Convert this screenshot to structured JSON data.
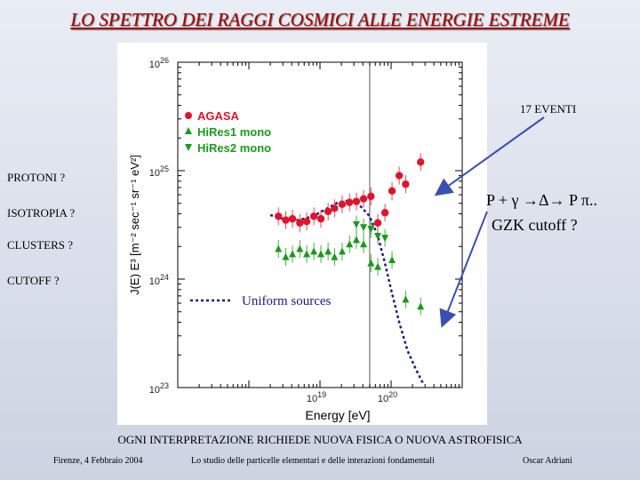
{
  "slide": {
    "title": "LO SPETTRO DEI RAGGI COSMICI ALLE ENERGIE ESTREME",
    "side_labels": [
      "PROTONI ?",
      "ISOTROPIA ?",
      "CLUSTERS ?",
      "CUTOFF ?"
    ],
    "eventi_label": "17 EVENTI",
    "gzk_line1": "P + γ →Δ→ P π..",
    "gzk_line2": "GZK cutoff ?",
    "bottom_note": "OGNI INTERPRETAZIONE  RICHIEDE NUOVA FISICA O NUOVA ASTROFISICA",
    "footer": {
      "left": "Firenze, 4 Febbraio 2004",
      "center": "Lo studio delle particelle elementari e delle interazioni fondamentali",
      "right": "Oscar Adriani"
    },
    "colors": {
      "title": "#a40000",
      "agasa": "#e0142a",
      "hires": "#1a9a1a",
      "uniform": "#1a1a8c"
    }
  },
  "chart_data": {
    "type": "scatter",
    "xlabel": "Energy [eV]",
    "ylabel": "J(E) E³ [m⁻² sec⁻¹ sr⁻¹ eV²]",
    "xlim": [
      1e+17,
      1e+21
    ],
    "ylim": [
      1e+23,
      1e+26
    ],
    "xscale": "log",
    "yscale": "log",
    "x_ticks": [
      {
        "value": 1e+19,
        "label_base": "10",
        "label_exp": "19"
      },
      {
        "value": 1e+20,
        "label_base": "10",
        "label_exp": "20"
      }
    ],
    "y_ticks": [
      {
        "value": 1e+23,
        "label_base": "10",
        "label_exp": "23"
      },
      {
        "value": 1e+24,
        "label_base": "10",
        "label_exp": "24"
      },
      {
        "value": 1e+25,
        "label_base": "10",
        "label_exp": "25"
      },
      {
        "value": 1e+26,
        "label_base": "10",
        "label_exp": "26"
      }
    ],
    "legend_position": "top-left",
    "series": [
      {
        "name": "AGASA",
        "marker": "circle",
        "color": "#e0142a",
        "points": [
          {
            "x": 2.6e+18,
            "y": 3.8e+24
          },
          {
            "x": 3.3e+18,
            "y": 3.5e+24
          },
          {
            "x": 4.1e+18,
            "y": 3.6e+24
          },
          {
            "x": 5.2e+18,
            "y": 3.3e+24
          },
          {
            "x": 6.5e+18,
            "y": 3.4e+24
          },
          {
            "x": 8.2e+18,
            "y": 3.8e+24
          },
          {
            "x": 1.03e+19,
            "y": 3.6e+24
          },
          {
            "x": 1.3e+19,
            "y": 4.2e+24
          },
          {
            "x": 1.6e+19,
            "y": 4.5e+24
          },
          {
            "x": 2.05e+19,
            "y": 4.9e+24
          },
          {
            "x": 2.6e+19,
            "y": 5.1e+24
          },
          {
            "x": 3.25e+19,
            "y": 5.2e+24
          },
          {
            "x": 4.1e+19,
            "y": 5.5e+24
          },
          {
            "x": 5.2e+19,
            "y": 5.8e+24
          },
          {
            "x": 6.5e+19,
            "y": 3.3e+24
          },
          {
            "x": 8.2e+19,
            "y": 4.1e+24
          },
          {
            "x": 1.03e+20,
            "y": 6.5e+24
          },
          {
            "x": 1.3e+20,
            "y": 9e+24
          },
          {
            "x": 1.6e+20,
            "y": 7.5e+24
          },
          {
            "x": 2.6e+20,
            "y": 1.2e+25
          }
        ]
      },
      {
        "name": "HiRes1 mono",
        "marker": "triangle-up",
        "color": "#1a9a1a",
        "points": [
          {
            "x": 2.6e+18,
            "y": 1.9e+24
          },
          {
            "x": 3.3e+18,
            "y": 1.6e+24
          },
          {
            "x": 4.1e+18,
            "y": 1.7e+24
          },
          {
            "x": 5.2e+18,
            "y": 1.9e+24
          },
          {
            "x": 6.5e+18,
            "y": 1.7e+24
          },
          {
            "x": 8.2e+18,
            "y": 1.8e+24
          },
          {
            "x": 1.03e+19,
            "y": 1.7e+24
          },
          {
            "x": 1.3e+19,
            "y": 1.8e+24
          },
          {
            "x": 1.6e+19,
            "y": 1.6e+24
          },
          {
            "x": 2.05e+19,
            "y": 1.8e+24
          },
          {
            "x": 2.6e+19,
            "y": 2.1e+24
          },
          {
            "x": 3.25e+19,
            "y": 2.3e+24
          },
          {
            "x": 4.1e+19,
            "y": 2.1e+24
          },
          {
            "x": 5.2e+19,
            "y": 1.4e+24
          },
          {
            "x": 6.5e+19,
            "y": 1.3e+24
          },
          {
            "x": 1.03e+20,
            "y": 1.5e+24
          },
          {
            "x": 1.6e+20,
            "y": 6.5e+23
          },
          {
            "x": 2.6e+20,
            "y": 5.6e+23
          }
        ]
      },
      {
        "name": "HiRes2 mono",
        "marker": "triangle-down",
        "color": "#1a9a1a",
        "points": [
          {
            "x": 3.25e+19,
            "y": 3.2e+24
          },
          {
            "x": 4.1e+19,
            "y": 3e+24
          },
          {
            "x": 5.2e+19,
            "y": 2.9e+24
          },
          {
            "x": 6.5e+19,
            "y": 2.5e+24
          },
          {
            "x": 8.2e+19,
            "y": 2.4e+24
          }
        ]
      }
    ],
    "uniform_sources": {
      "name": "Uniform sources",
      "color": "#1a1a8c",
      "points": [
        {
          "x": 2e+18,
          "y": 3.9e+24
        },
        {
          "x": 3e+18,
          "y": 3.6e+24
        },
        {
          "x": 5e+18,
          "y": 3.5e+24
        },
        {
          "x": 8e+18,
          "y": 3.8e+24
        },
        {
          "x": 1.2e+19,
          "y": 4.4e+24
        },
        {
          "x": 1.8e+19,
          "y": 5.1e+24
        },
        {
          "x": 2.5e+19,
          "y": 5.3e+24
        },
        {
          "x": 3.5e+19,
          "y": 4.9e+24
        },
        {
          "x": 5e+19,
          "y": 3.8e+24
        },
        {
          "x": 6.5e+19,
          "y": 2.5e+24
        },
        {
          "x": 8e+19,
          "y": 1.5e+24
        },
        {
          "x": 1e+20,
          "y": 8e+23
        },
        {
          "x": 1.3e+20,
          "y": 4e+23
        },
        {
          "x": 1.7e+20,
          "y": 2.2e+23
        },
        {
          "x": 2.2e+20,
          "y": 1.5e+23
        },
        {
          "x": 2.8e+20,
          "y": 1.1e+23
        }
      ]
    }
  }
}
